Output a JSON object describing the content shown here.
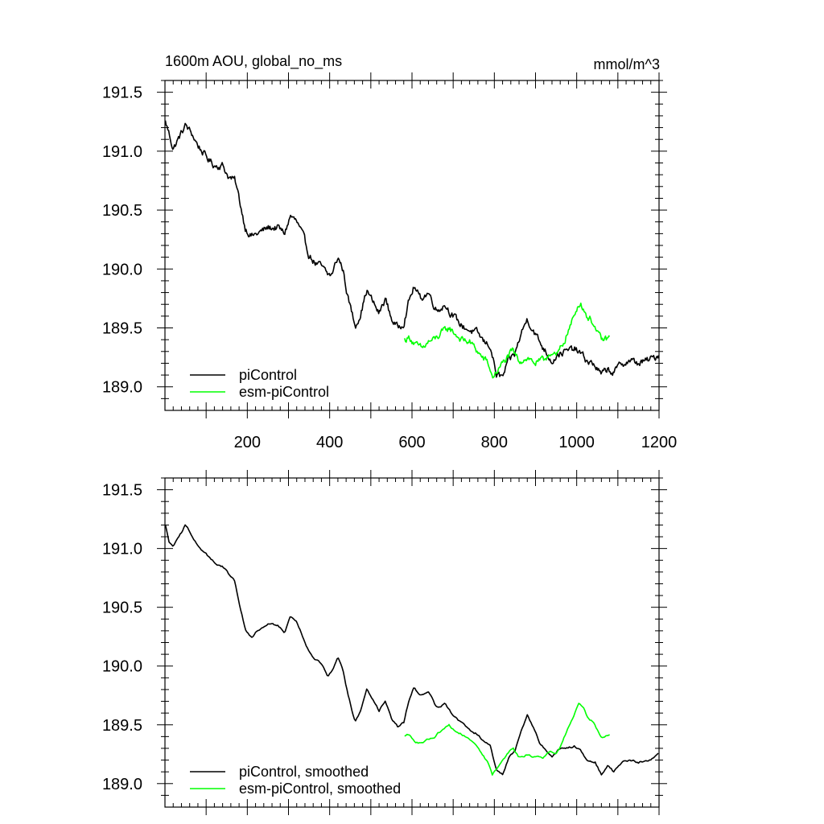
{
  "figure": {
    "title_left": "1600m AOU, global_no_ms",
    "title_right": "mmol/m^3"
  },
  "chart_data": [
    {
      "type": "line",
      "panel": "top",
      "xlim": [
        0,
        1200
      ],
      "ylim": [
        188.8,
        191.6
      ],
      "x_ticks": [
        200,
        400,
        600,
        800,
        1000,
        1200
      ],
      "x_tick_labels": [
        "200",
        "400",
        "600",
        "800",
        "1000",
        "1200"
      ],
      "y_ticks": [
        189.0,
        189.5,
        190.0,
        190.5,
        191.0,
        191.5
      ],
      "y_tick_labels": [
        "189.0",
        "189.5",
        "190.0",
        "190.5",
        "191.0",
        "191.5"
      ],
      "legend_position": "bottom-left",
      "series": [
        {
          "name": "piControl",
          "color": "#000000",
          "noise": 0.05,
          "points": [
            [
              1,
              191.25
            ],
            [
              10,
              191.15
            ],
            [
              20,
              191.02
            ],
            [
              35,
              191.12
            ],
            [
              50,
              191.22
            ],
            [
              65,
              191.15
            ],
            [
              80,
              191.05
            ],
            [
              100,
              190.95
            ],
            [
              120,
              190.88
            ],
            [
              140,
              190.88
            ],
            [
              155,
              190.78
            ],
            [
              170,
              190.75
            ],
            [
              180,
              190.6
            ],
            [
              195,
              190.35
            ],
            [
              210,
              190.28
            ],
            [
              225,
              190.3
            ],
            [
              250,
              190.35
            ],
            [
              275,
              190.35
            ],
            [
              290,
              190.3
            ],
            [
              305,
              190.45
            ],
            [
              320,
              190.4
            ],
            [
              335,
              190.28
            ],
            [
              350,
              190.12
            ],
            [
              365,
              190.05
            ],
            [
              380,
              190.02
            ],
            [
              395,
              189.95
            ],
            [
              405,
              189.95
            ],
            [
              420,
              190.1
            ],
            [
              432,
              190.0
            ],
            [
              445,
              189.75
            ],
            [
              462,
              189.52
            ],
            [
              475,
              189.62
            ],
            [
              490,
              189.82
            ],
            [
              505,
              189.72
            ],
            [
              520,
              189.62
            ],
            [
              535,
              189.75
            ],
            [
              550,
              189.58
            ],
            [
              565,
              189.5
            ],
            [
              580,
              189.55
            ],
            [
              592,
              189.72
            ],
            [
              605,
              189.85
            ],
            [
              620,
              189.75
            ],
            [
              640,
              189.8
            ],
            [
              660,
              189.65
            ],
            [
              680,
              189.7
            ],
            [
              700,
              189.6
            ],
            [
              720,
              189.52
            ],
            [
              740,
              189.48
            ],
            [
              760,
              189.45
            ],
            [
              775,
              189.38
            ],
            [
              790,
              189.35
            ],
            [
              805,
              189.1
            ],
            [
              820,
              189.08
            ],
            [
              835,
              189.22
            ],
            [
              850,
              189.28
            ],
            [
              865,
              189.45
            ],
            [
              880,
              189.58
            ],
            [
              895,
              189.48
            ],
            [
              910,
              189.38
            ],
            [
              925,
              189.3
            ],
            [
              940,
              189.22
            ],
            [
              955,
              189.28
            ],
            [
              975,
              189.3
            ],
            [
              995,
              189.32
            ],
            [
              1010,
              189.28
            ],
            [
              1025,
              189.22
            ],
            [
              1045,
              189.18
            ],
            [
              1060,
              189.1
            ],
            [
              1075,
              189.15
            ],
            [
              1090,
              189.12
            ],
            [
              1110,
              189.2
            ],
            [
              1130,
              189.22
            ],
            [
              1150,
              189.2
            ],
            [
              1170,
              189.22
            ],
            [
              1190,
              189.25
            ],
            [
              1200,
              189.28
            ]
          ]
        },
        {
          "name": "esm-piControl",
          "color": "#00ff00",
          "noise": 0.05,
          "points": [
            [
              582,
              189.4
            ],
            [
              595,
              189.42
            ],
            [
              610,
              189.35
            ],
            [
              625,
              189.32
            ],
            [
              640,
              189.38
            ],
            [
              655,
              189.4
            ],
            [
              670,
              189.45
            ],
            [
              690,
              189.5
            ],
            [
              705,
              189.45
            ],
            [
              720,
              189.4
            ],
            [
              740,
              189.38
            ],
            [
              755,
              189.32
            ],
            [
              770,
              189.25
            ],
            [
              785,
              189.2
            ],
            [
              795,
              189.08
            ],
            [
              810,
              189.15
            ],
            [
              825,
              189.22
            ],
            [
              845,
              189.3
            ],
            [
              860,
              189.22
            ],
            [
              880,
              189.25
            ],
            [
              900,
              189.2
            ],
            [
              920,
              189.22
            ],
            [
              935,
              189.3
            ],
            [
              950,
              189.25
            ],
            [
              965,
              189.35
            ],
            [
              980,
              189.48
            ],
            [
              995,
              189.6
            ],
            [
              1005,
              189.72
            ],
            [
              1015,
              189.68
            ],
            [
              1025,
              189.6
            ],
            [
              1040,
              189.55
            ],
            [
              1050,
              189.45
            ],
            [
              1060,
              189.4
            ],
            [
              1070,
              189.4
            ],
            [
              1080,
              189.42
            ]
          ]
        }
      ]
    },
    {
      "type": "line",
      "panel": "bottom",
      "xlim": [
        0,
        1200
      ],
      "ylim": [
        188.8,
        191.6
      ],
      "x_ticks": [
        200,
        400,
        600,
        800,
        1000,
        1200
      ],
      "y_ticks": [
        189.0,
        189.5,
        190.0,
        190.5,
        191.0,
        191.5
      ],
      "y_tick_labels": [
        "189.0",
        "189.5",
        "190.0",
        "190.5",
        "191.0",
        "191.5"
      ],
      "legend_position": "bottom-left",
      "series": [
        {
          "name": "piControl, smoothed",
          "color": "#000000",
          "noise": 0.015,
          "points": [
            [
              1,
              191.2
            ],
            [
              10,
              191.05
            ],
            [
              20,
              191.02
            ],
            [
              35,
              191.1
            ],
            [
              50,
              191.2
            ],
            [
              65,
              191.12
            ],
            [
              80,
              191.02
            ],
            [
              100,
              190.95
            ],
            [
              120,
              190.88
            ],
            [
              140,
              190.85
            ],
            [
              155,
              190.78
            ],
            [
              170,
              190.72
            ],
            [
              180,
              190.55
            ],
            [
              195,
              190.32
            ],
            [
              210,
              190.25
            ],
            [
              225,
              190.3
            ],
            [
              250,
              190.35
            ],
            [
              275,
              190.35
            ],
            [
              290,
              190.28
            ],
            [
              305,
              190.42
            ],
            [
              320,
              190.38
            ],
            [
              335,
              190.25
            ],
            [
              350,
              190.12
            ],
            [
              365,
              190.05
            ],
            [
              380,
              190.02
            ],
            [
              395,
              189.92
            ],
            [
              405,
              189.95
            ],
            [
              420,
              190.08
            ],
            [
              432,
              189.98
            ],
            [
              445,
              189.75
            ],
            [
              462,
              189.52
            ],
            [
              475,
              189.62
            ],
            [
              490,
              189.8
            ],
            [
              505,
              189.72
            ],
            [
              520,
              189.62
            ],
            [
              535,
              189.7
            ],
            [
              550,
              189.55
            ],
            [
              565,
              189.48
            ],
            [
              580,
              189.52
            ],
            [
              592,
              189.7
            ],
            [
              605,
              189.82
            ],
            [
              620,
              189.75
            ],
            [
              640,
              189.78
            ],
            [
              660,
              189.65
            ],
            [
              680,
              189.68
            ],
            [
              700,
              189.58
            ],
            [
              720,
              189.52
            ],
            [
              740,
              189.45
            ],
            [
              760,
              189.42
            ],
            [
              775,
              189.35
            ],
            [
              790,
              189.32
            ],
            [
              805,
              189.12
            ],
            [
              820,
              189.08
            ],
            [
              835,
              189.22
            ],
            [
              850,
              189.28
            ],
            [
              865,
              189.45
            ],
            [
              880,
              189.58
            ],
            [
              895,
              189.48
            ],
            [
              910,
              189.35
            ],
            [
              925,
              189.28
            ],
            [
              940,
              189.22
            ],
            [
              955,
              189.28
            ],
            [
              975,
              189.3
            ],
            [
              995,
              189.32
            ],
            [
              1010,
              189.28
            ],
            [
              1025,
              189.2
            ],
            [
              1045,
              189.18
            ],
            [
              1060,
              189.08
            ],
            [
              1075,
              189.15
            ],
            [
              1090,
              189.1
            ],
            [
              1110,
              189.18
            ],
            [
              1130,
              189.2
            ],
            [
              1150,
              189.18
            ],
            [
              1170,
              189.2
            ],
            [
              1190,
              189.22
            ],
            [
              1200,
              189.26
            ]
          ]
        },
        {
          "name": "esm-piControl, smoothed",
          "color": "#00ff00",
          "noise": 0.015,
          "points": [
            [
              582,
              189.4
            ],
            [
              595,
              189.42
            ],
            [
              610,
              189.35
            ],
            [
              625,
              189.35
            ],
            [
              640,
              189.38
            ],
            [
              655,
              189.4
            ],
            [
              670,
              189.45
            ],
            [
              690,
              189.5
            ],
            [
              705,
              189.45
            ],
            [
              720,
              189.42
            ],
            [
              740,
              189.38
            ],
            [
              755,
              189.32
            ],
            [
              770,
              189.25
            ],
            [
              785,
              189.18
            ],
            [
              795,
              189.08
            ],
            [
              810,
              189.15
            ],
            [
              825,
              189.22
            ],
            [
              845,
              189.3
            ],
            [
              860,
              189.22
            ],
            [
              880,
              189.25
            ],
            [
              900,
              189.22
            ],
            [
              920,
              189.22
            ],
            [
              935,
              189.28
            ],
            [
              950,
              189.25
            ],
            [
              965,
              189.35
            ],
            [
              980,
              189.48
            ],
            [
              995,
              189.6
            ],
            [
              1005,
              189.68
            ],
            [
              1015,
              189.66
            ],
            [
              1025,
              189.58
            ],
            [
              1040,
              189.52
            ],
            [
              1050,
              189.45
            ],
            [
              1060,
              189.4
            ],
            [
              1070,
              189.4
            ],
            [
              1080,
              189.42
            ]
          ]
        }
      ]
    }
  ]
}
